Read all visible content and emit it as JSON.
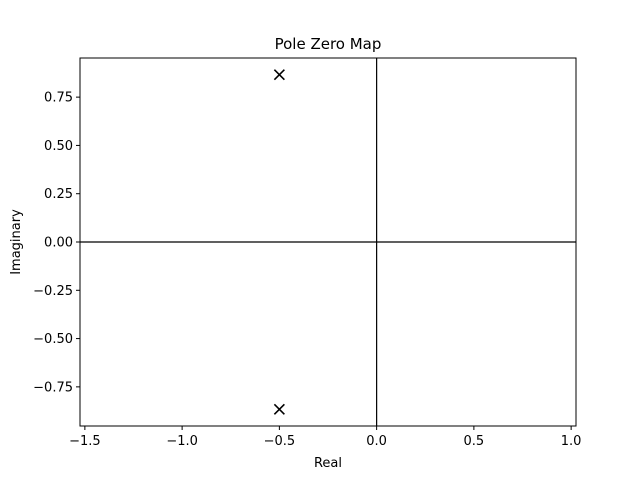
{
  "chart_data": {
    "type": "scatter",
    "title": "Pole Zero Map",
    "xlabel": "Real",
    "ylabel": "Imaginary",
    "xlim": [
      -1.525,
      1.025
    ],
    "ylim": [
      -0.9526,
      0.9526
    ],
    "xticks": [
      -1.5,
      -1.0,
      -0.5,
      0.0,
      0.5,
      1.0
    ],
    "xtick_labels": [
      "−1.5",
      "−1.0",
      "−0.5",
      "0.0",
      "0.5",
      "1.0"
    ],
    "yticks": [
      0.75,
      0.5,
      0.25,
      0.0,
      -0.25,
      -0.5,
      -0.75
    ],
    "ytick_labels": [
      "0.75",
      "0.50",
      "0.25",
      "0.00",
      "−0.25",
      "−0.50",
      "−0.75"
    ],
    "grid": false,
    "zero_lines": true,
    "series": [
      {
        "marker": "x",
        "color": "#000000",
        "points": [
          {
            "x": -0.5,
            "y": 0.866
          },
          {
            "x": -0.5,
            "y": -0.866
          }
        ]
      }
    ]
  }
}
